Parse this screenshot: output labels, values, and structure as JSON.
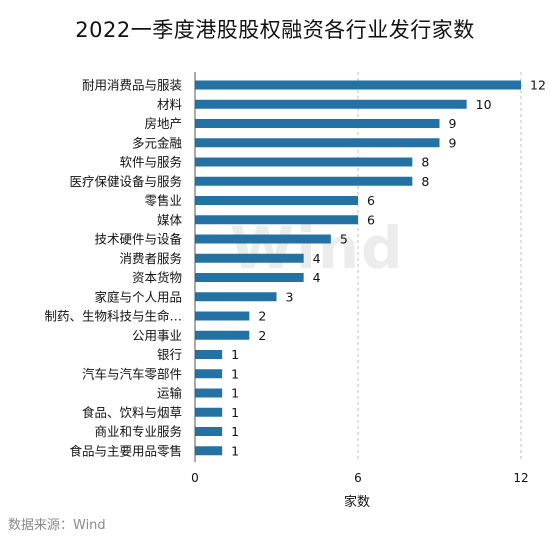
{
  "chart_data": {
    "type": "bar",
    "orientation": "horizontal",
    "title": "2022一季度港股股权融资各行业发行家数",
    "xlabel": "家数",
    "ylabel": "",
    "xlim": [
      0,
      12
    ],
    "ticks": [
      0,
      6,
      12
    ],
    "grid": "vertical-dashed",
    "bar_color": "#2472a4",
    "categories": [
      "耐用消费品与服装",
      "材料",
      "房地产",
      "多元金融",
      "软件与服务",
      "医疗保健设备与服务",
      "零售业",
      "媒体",
      "技术硬件与设备",
      "消费者服务",
      "资本货物",
      "家庭与个人用品",
      "制药、生物科技与生命…",
      "公用事业",
      "银行",
      "汽车与汽车零部件",
      "运输",
      "食品、饮料与烟草",
      "商业和专业服务",
      "食品与主要用品零售"
    ],
    "values": [
      12,
      10,
      9,
      9,
      8,
      8,
      6,
      6,
      5,
      4,
      4,
      3,
      2,
      2,
      1,
      1,
      1,
      1,
      1,
      1
    ]
  },
  "source": "数据来源：Wind",
  "watermark": "Wind"
}
